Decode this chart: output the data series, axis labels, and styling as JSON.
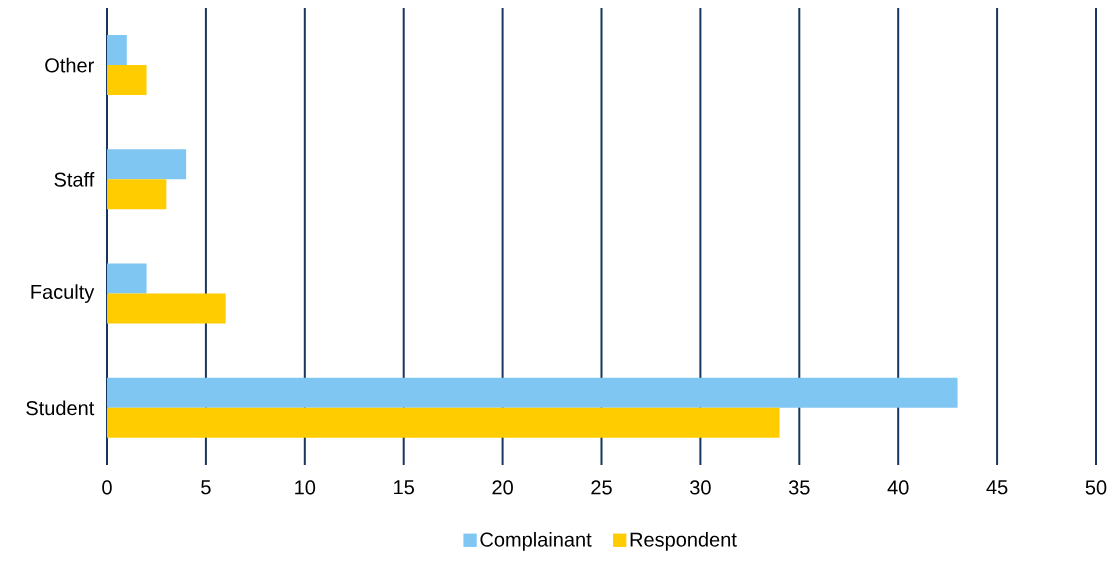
{
  "chart_data": {
    "type": "bar",
    "orientation": "horizontal",
    "categories": [
      "Other",
      "Staff",
      "Faculty",
      "Student"
    ],
    "series": [
      {
        "name": "Complainant",
        "color": "#7fc6f2",
        "values": [
          1,
          4,
          2,
          43
        ]
      },
      {
        "name": "Respondent",
        "color": "#ffcc00",
        "values": [
          2,
          3,
          6,
          34
        ]
      }
    ],
    "xlim": [
      0,
      50
    ],
    "xticks": [
      0,
      5,
      10,
      15,
      20,
      25,
      30,
      35,
      40,
      45,
      50
    ],
    "grid": "x",
    "legend": "bottom"
  }
}
